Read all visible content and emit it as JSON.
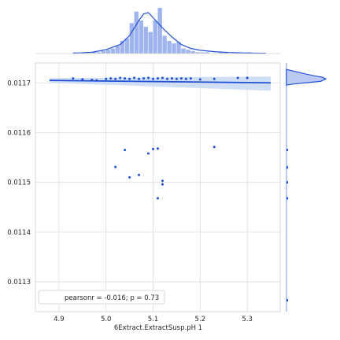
{
  "chart_data": {
    "type": "scatter",
    "title": "",
    "xlabel": "6Extract.ExtractSusp.pH 1",
    "ylabel": "",
    "xlim": [
      4.85,
      5.37
    ],
    "ylim": [
      0.01124,
      0.01174
    ],
    "x_ticks": [
      4.9,
      5.0,
      5.1,
      5.2,
      5.3
    ],
    "x_tick_labels": [
      "4.9",
      "5.0",
      "5.1",
      "5.2",
      "5.3"
    ],
    "y_ticks": [
      0.0113,
      0.0114,
      0.0115,
      0.0116,
      0.0117
    ],
    "y_tick_labels": [
      "0.0113",
      "0.0114",
      "0.0115",
      "0.0116",
      "0.0117"
    ],
    "grid": true,
    "legend_placement": "lower-left",
    "legend_text": "pearsonr = -0.016; p = 0.73",
    "color": "#1f4fd6",
    "band_color": "#c9d9f5",
    "points": [
      {
        "x": 4.93,
        "y": 0.011709
      },
      {
        "x": 4.95,
        "y": 0.011707
      },
      {
        "x": 4.97,
        "y": 0.011706
      },
      {
        "x": 4.98,
        "y": 0.011705
      },
      {
        "x": 5.0,
        "y": 0.011708
      },
      {
        "x": 5.01,
        "y": 0.011709
      },
      {
        "x": 5.02,
        "y": 0.011708
      },
      {
        "x": 5.03,
        "y": 0.01171
      },
      {
        "x": 5.04,
        "y": 0.011709
      },
      {
        "x": 5.05,
        "y": 0.011708
      },
      {
        "x": 5.06,
        "y": 0.01171
      },
      {
        "x": 5.07,
        "y": 0.011708
      },
      {
        "x": 5.08,
        "y": 0.011709
      },
      {
        "x": 5.09,
        "y": 0.01171
      },
      {
        "x": 5.1,
        "y": 0.011708
      },
      {
        "x": 5.11,
        "y": 0.011709
      },
      {
        "x": 5.12,
        "y": 0.01171
      },
      {
        "x": 5.13,
        "y": 0.011708
      },
      {
        "x": 5.14,
        "y": 0.011709
      },
      {
        "x": 5.15,
        "y": 0.011708
      },
      {
        "x": 5.16,
        "y": 0.011709
      },
      {
        "x": 5.17,
        "y": 0.011708
      },
      {
        "x": 5.18,
        "y": 0.011709
      },
      {
        "x": 5.2,
        "y": 0.011707
      },
      {
        "x": 5.23,
        "y": 0.011708
      },
      {
        "x": 5.28,
        "y": 0.01171
      },
      {
        "x": 5.3,
        "y": 0.01171
      },
      {
        "x": 5.04,
        "y": 0.011565
      },
      {
        "x": 5.09,
        "y": 0.011558
      },
      {
        "x": 5.1,
        "y": 0.011567
      },
      {
        "x": 5.11,
        "y": 0.011568
      },
      {
        "x": 5.23,
        "y": 0.011571
      },
      {
        "x": 5.02,
        "y": 0.011531
      },
      {
        "x": 5.05,
        "y": 0.01151
      },
      {
        "x": 5.07,
        "y": 0.011515
      },
      {
        "x": 5.12,
        "y": 0.011503
      },
      {
        "x": 5.12,
        "y": 0.011496
      },
      {
        "x": 5.11,
        "y": 0.011468
      },
      {
        "x": 5.12,
        "y": 0.011263
      }
    ],
    "regression": {
      "x_start": 4.88,
      "y_start": 0.011705,
      "x_end": 5.35,
      "y_end": 0.0117
    },
    "top_histogram": {
      "bin_start": 4.93,
      "bin_width": 0.01,
      "counts": [
        1,
        0,
        0,
        0,
        1,
        1,
        2,
        3,
        4,
        6,
        10,
        12,
        24,
        33,
        26,
        21,
        17,
        26,
        36,
        14,
        10,
        8,
        9,
        4,
        3,
        2,
        1,
        1,
        1,
        0,
        0,
        1,
        1,
        0,
        0,
        0,
        0,
        1
      ]
    },
    "top_kde_density": [
      [
        4.93,
        0.2
      ],
      [
        4.97,
        1
      ],
      [
        5.0,
        3
      ],
      [
        5.03,
        7
      ],
      [
        5.05,
        14
      ],
      [
        5.07,
        26
      ],
      [
        5.08,
        31
      ],
      [
        5.09,
        32
      ],
      [
        5.1,
        28
      ],
      [
        5.12,
        20
      ],
      [
        5.14,
        13
      ],
      [
        5.16,
        7
      ],
      [
        5.18,
        4
      ],
      [
        5.2,
        2.5
      ],
      [
        5.23,
        1.5
      ],
      [
        5.26,
        0.8
      ],
      [
        5.3,
        0.4
      ],
      [
        5.34,
        0.2
      ]
    ]
  }
}
